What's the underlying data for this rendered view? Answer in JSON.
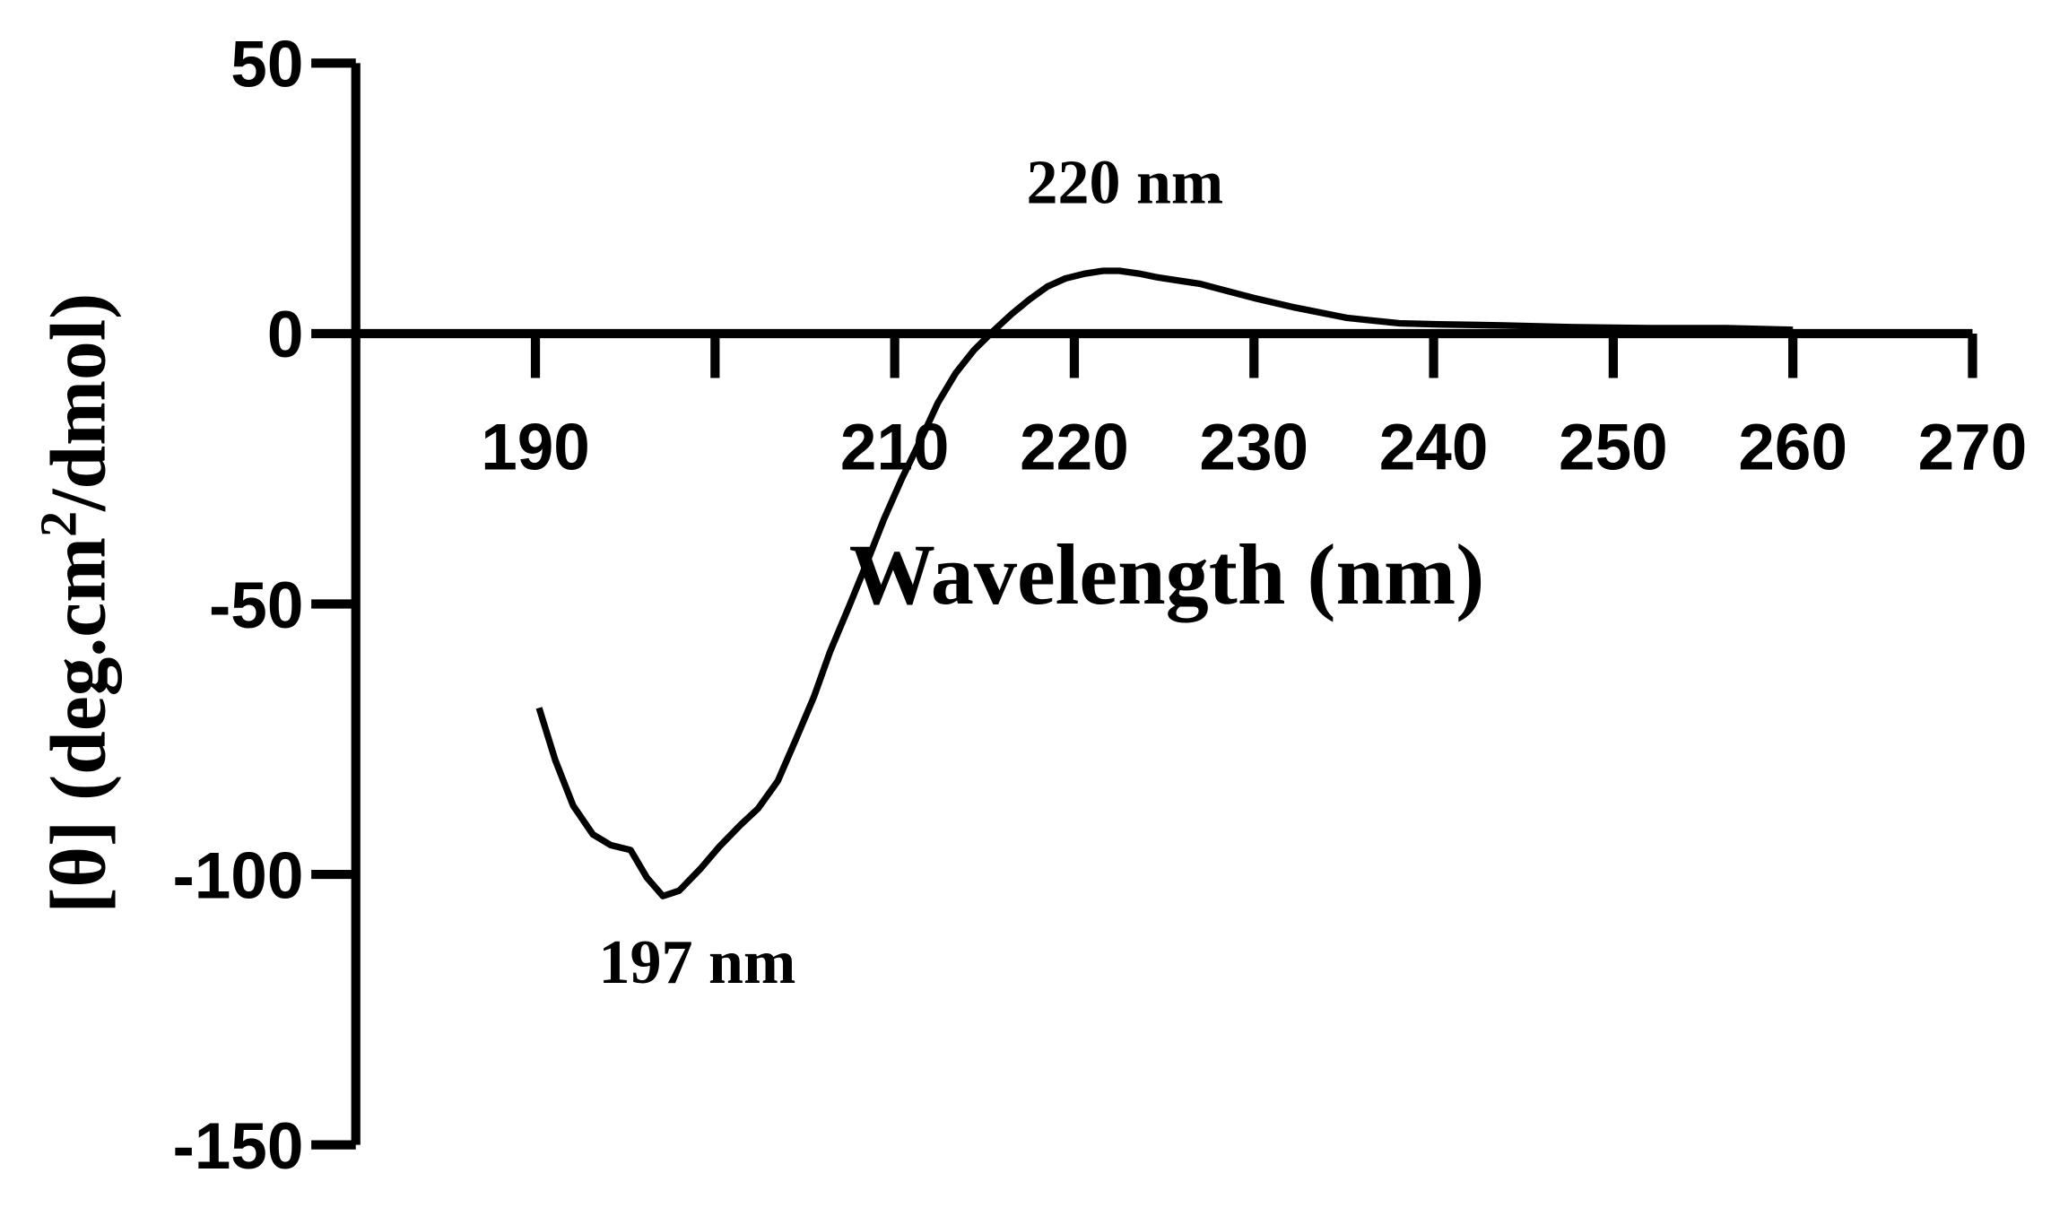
{
  "chart_data": {
    "type": "line",
    "xlabel": "Wavelength  (nm)",
    "ylabel": [
      "[θ] (deg.cm",
      "2",
      "/dmol)"
    ],
    "annotations": [
      "220 nm",
      "197 nm"
    ],
    "color": "#000000",
    "x": [
      190.2,
      191.1,
      192.1,
      193.2,
      194.2,
      195.3,
      196.2,
      197.1,
      198.0,
      199.2,
      200.2,
      201.4,
      202.4,
      203.5,
      204.5,
      205.5,
      206.4,
      207.5,
      208.4,
      209.4,
      210.4,
      211.5,
      212.4,
      213.4,
      214.4,
      215.5,
      216.5,
      217.5,
      218.5,
      219.5,
      220.6,
      221.6,
      222.5,
      223.6,
      224.6,
      225.6,
      227.0,
      228.7,
      230.1,
      232.3,
      235.2,
      238.1,
      240.3,
      243.9,
      247.6,
      252.0,
      256.3,
      260.0
    ],
    "values": [
      -69.2,
      -78.8,
      -87.3,
      -92.6,
      -94.6,
      -95.5,
      -100.6,
      -104,
      -103,
      -98.9,
      -95,
      -90.9,
      -87.8,
      -82.7,
      -75,
      -67.2,
      -58.8,
      -50.1,
      -42.8,
      -34.3,
      -26.8,
      -19.3,
      -12.8,
      -7.3,
      -3.1,
      0.5,
      3.6,
      6.3,
      8.7,
      10.2,
      11.1,
      11.6,
      11.6,
      11.1,
      10.4,
      9.9,
      9.2,
      7.7,
      6.5,
      4.8,
      2.9,
      1.9,
      1.7,
      1.5,
      1.2,
      1.0,
      1.0,
      0.7
    ],
    "xlim": [
      180,
      270
    ],
    "xticks": [
      190,
      {
        "value": 200,
        "label": null
      },
      210,
      220,
      230,
      240,
      250,
      260,
      270
    ],
    "ylim": [
      -150,
      50
    ],
    "yticks": [
      50,
      0,
      -50,
      -100,
      -150
    ]
  }
}
